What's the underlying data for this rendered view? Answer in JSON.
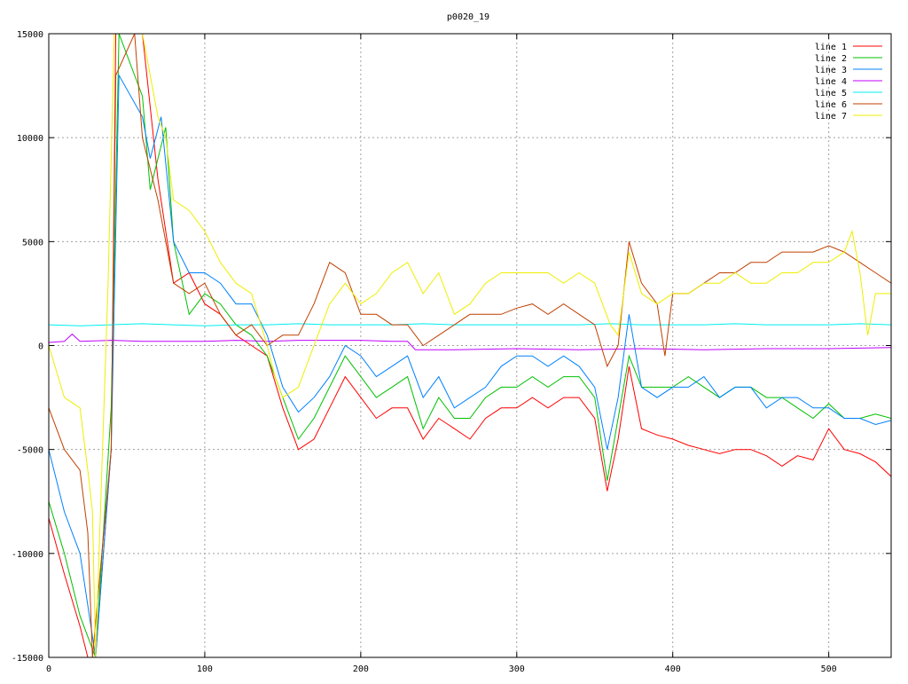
{
  "chart_data": {
    "type": "line",
    "title": "p0020_19",
    "xlabel": "",
    "ylabel": "",
    "xlim": [
      0,
      540
    ],
    "ylim": [
      -15000,
      15000
    ],
    "xticks": [
      0,
      100,
      200,
      300,
      400,
      500
    ],
    "yticks": [
      -15000,
      -10000,
      -5000,
      0,
      5000,
      10000,
      15000
    ],
    "xtick_labels": [
      "0",
      "100",
      "200",
      "300",
      "400",
      "500"
    ],
    "ytick_labels": [
      "-15000",
      "-10000",
      "-5000",
      "0",
      "5000",
      "10000",
      "15000"
    ],
    "grid": true,
    "legend_position": "top-right",
    "series": [
      {
        "name": "line 1",
        "color": "#ff0000",
        "x": [
          0,
          10,
          20,
          25,
          30,
          40,
          43,
          60,
          70,
          80,
          90,
          100,
          110,
          120,
          130,
          140,
          150,
          160,
          170,
          180,
          190,
          200,
          210,
          220,
          230,
          240,
          250,
          260,
          270,
          280,
          290,
          300,
          310,
          320,
          330,
          340,
          350,
          358,
          365,
          372,
          380,
          390,
          400,
          410,
          420,
          430,
          440,
          450,
          460,
          470,
          480,
          490,
          500,
          510,
          520,
          530,
          540
        ],
        "y": [
          -8300,
          -11000,
          -13500,
          -15000,
          -15000,
          -5000,
          15000,
          15000,
          8000,
          3000,
          3500,
          2000,
          1500,
          500,
          0,
          -500,
          -3000,
          -5000,
          -4500,
          -3000,
          -1500,
          -2500,
          -3500,
          -3000,
          -3000,
          -4500,
          -3500,
          -4000,
          -4500,
          -3500,
          -3000,
          -3000,
          -2500,
          -3000,
          -2500,
          -2500,
          -3500,
          -7000,
          -4500,
          -1000,
          -4000,
          -4300,
          -4500,
          -4800,
          -5000,
          -5200,
          -5000,
          -5000,
          -5300,
          -5800,
          -5300,
          -5500,
          -4000,
          -5000,
          -5200,
          -5600,
          -6300
        ]
      },
      {
        "name": "line 2",
        "color": "#00c000",
        "x": [
          0,
          10,
          20,
          30,
          40,
          45,
          60,
          65,
          75,
          80,
          90,
          100,
          110,
          120,
          130,
          140,
          150,
          160,
          170,
          180,
          190,
          200,
          210,
          220,
          230,
          240,
          250,
          260,
          270,
          280,
          290,
          300,
          310,
          320,
          330,
          340,
          350,
          358,
          365,
          372,
          380,
          390,
          400,
          410,
          420,
          430,
          440,
          450,
          460,
          470,
          480,
          490,
          500,
          510,
          520,
          530,
          540
        ],
        "y": [
          -7500,
          -10000,
          -13000,
          -15000,
          -3000,
          15000,
          12000,
          7500,
          10500,
          5000,
          1500,
          2500,
          2000,
          1000,
          500,
          -500,
          -2500,
          -4500,
          -3500,
          -2000,
          -500,
          -1500,
          -2500,
          -2000,
          -1500,
          -4000,
          -2500,
          -3500,
          -3500,
          -2500,
          -2000,
          -2000,
          -1500,
          -2000,
          -1500,
          -1500,
          -2500,
          -6500,
          -3500,
          -500,
          -2000,
          -2000,
          -2000,
          -1500,
          -2000,
          -2500,
          -2000,
          -2000,
          -2500,
          -2500,
          -3000,
          -3500,
          -2800,
          -3500,
          -3500,
          -3300,
          -3500
        ]
      },
      {
        "name": "line 3",
        "color": "#0080ff",
        "x": [
          0,
          10,
          20,
          30,
          40,
          45,
          60,
          65,
          72,
          80,
          90,
          100,
          110,
          120,
          130,
          140,
          150,
          160,
          170,
          180,
          190,
          200,
          210,
          220,
          230,
          240,
          250,
          260,
          270,
          280,
          290,
          300,
          310,
          320,
          330,
          340,
          350,
          358,
          365,
          372,
          380,
          390,
          400,
          410,
          420,
          430,
          440,
          450,
          460,
          470,
          480,
          490,
          500,
          510,
          520,
          530,
          540
        ],
        "y": [
          -5000,
          -8000,
          -10000,
          -15000,
          -5000,
          13000,
          11000,
          9000,
          11000,
          5000,
          3500,
          3500,
          3000,
          2000,
          2000,
          500,
          -2000,
          -3200,
          -2500,
          -1500,
          0,
          -500,
          -1500,
          -1000,
          -500,
          -2500,
          -1500,
          -3000,
          -2500,
          -2000,
          -1000,
          -500,
          -500,
          -1000,
          -500,
          -1000,
          -2000,
          -5000,
          -2500,
          1500,
          -2000,
          -2500,
          -2000,
          -2000,
          -1500,
          -2500,
          -2000,
          -2000,
          -3000,
          -2500,
          -2500,
          -3000,
          -3000,
          -3500,
          -3500,
          -3800,
          -3600
        ]
      },
      {
        "name": "line 4",
        "color": "#c000ff",
        "x": [
          0,
          10,
          15,
          20,
          40,
          60,
          80,
          100,
          120,
          140,
          160,
          180,
          200,
          220,
          230,
          235,
          260,
          300,
          340,
          380,
          420,
          460,
          500,
          540
        ],
        "y": [
          150,
          200,
          550,
          200,
          250,
          200,
          200,
          200,
          250,
          200,
          250,
          250,
          250,
          200,
          200,
          -200,
          -200,
          -150,
          -200,
          -150,
          -200,
          -150,
          -150,
          -100
        ]
      },
      {
        "name": "line 5",
        "color": "#00eeee",
        "x": [
          0,
          20,
          40,
          60,
          80,
          100,
          120,
          140,
          160,
          180,
          200,
          220,
          240,
          260,
          280,
          300,
          320,
          340,
          360,
          380,
          400,
          420,
          440,
          460,
          480,
          500,
          520,
          540
        ],
        "y": [
          1000,
          950,
          1000,
          1050,
          1000,
          950,
          1000,
          1000,
          1050,
          1000,
          1000,
          1000,
          1050,
          1000,
          1000,
          1000,
          1000,
          1000,
          1050,
          1000,
          1000,
          1000,
          1050,
          1000,
          1000,
          1000,
          1050,
          1000
        ]
      },
      {
        "name": "line 6",
        "color": "#c04000",
        "x": [
          0,
          10,
          20,
          25,
          28,
          40,
          43,
          55,
          60,
          70,
          80,
          90,
          100,
          110,
          120,
          130,
          140,
          150,
          160,
          170,
          180,
          190,
          200,
          210,
          220,
          230,
          240,
          250,
          260,
          270,
          280,
          290,
          300,
          310,
          320,
          330,
          340,
          350,
          358,
          365,
          372,
          380,
          390,
          395,
          400,
          410,
          420,
          430,
          440,
          450,
          460,
          470,
          480,
          490,
          500,
          510,
          520,
          530,
          540
        ],
        "y": [
          -3000,
          -5000,
          -6000,
          -9000,
          -15000,
          -5000,
          13000,
          15000,
          10000,
          7000,
          3000,
          2500,
          3000,
          1500,
          500,
          1000,
          0,
          500,
          500,
          2000,
          4000,
          3500,
          1500,
          1500,
          1000,
          1000,
          0,
          500,
          1000,
          1500,
          1500,
          1500,
          1800,
          2000,
          1500,
          2000,
          1500,
          1000,
          -1000,
          0,
          5000,
          3000,
          2000,
          -500,
          2500,
          2500,
          3000,
          3500,
          3500,
          4000,
          4000,
          4500,
          4500,
          4500,
          4800,
          4500,
          4000,
          3500,
          3000
        ]
      },
      {
        "name": "line 7",
        "color": "#eeee00",
        "x": [
          0,
          10,
          20,
          25,
          28,
          30,
          38,
          42,
          60,
          65,
          70,
          75,
          80,
          90,
          100,
          110,
          120,
          130,
          140,
          145,
          150,
          160,
          170,
          180,
          190,
          200,
          210,
          220,
          230,
          240,
          250,
          260,
          270,
          280,
          290,
          300,
          310,
          320,
          330,
          340,
          350,
          360,
          365,
          372,
          380,
          390,
          400,
          410,
          420,
          430,
          440,
          450,
          460,
          470,
          480,
          490,
          500,
          510,
          515,
          520,
          525,
          530,
          540
        ],
        "y": [
          0,
          -2500,
          -3000,
          -6000,
          -8000,
          -15000,
          3000,
          15000,
          15000,
          13000,
          11000,
          10000,
          7000,
          6500,
          5500,
          4000,
          3000,
          2500,
          0,
          -1500,
          -2500,
          -2000,
          0,
          2000,
          3000,
          2000,
          2500,
          3500,
          4000,
          2500,
          3500,
          1500,
          2000,
          3000,
          3500,
          3500,
          3500,
          3500,
          3000,
          3500,
          3000,
          1000,
          500,
          4500,
          2500,
          2000,
          2500,
          2500,
          3000,
          3000,
          3500,
          3000,
          3000,
          3500,
          3500,
          4000,
          4000,
          4500,
          5500,
          3500,
          500,
          2500,
          2500
        ]
      }
    ]
  }
}
